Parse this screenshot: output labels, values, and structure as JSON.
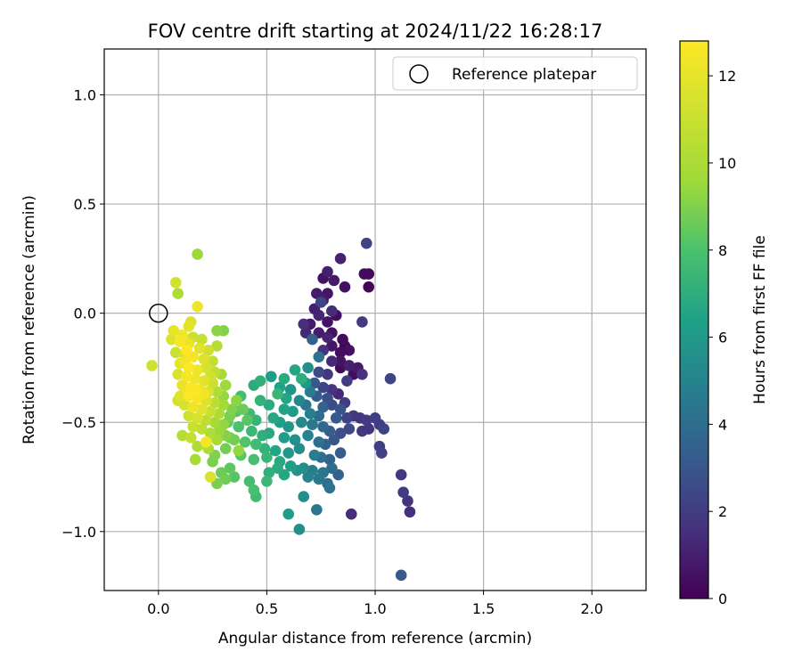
{
  "chart_data": {
    "type": "scatter",
    "title": "FOV centre drift starting at 2024/11/22 16:28:17",
    "xlabel": "Angular distance from reference (arcmin)",
    "ylabel": "Rotation from reference (arcmin)",
    "xlim": [
      -0.25,
      2.25
    ],
    "ylim": [
      -1.27,
      1.21
    ],
    "xticks": [
      0.0,
      0.5,
      1.0,
      1.5,
      2.0
    ],
    "xtick_labels": [
      "0.0",
      "0.5",
      "1.0",
      "1.5",
      "2.0"
    ],
    "yticks": [
      1.0,
      0.5,
      0.0,
      -0.5,
      -1.0
    ],
    "ytick_labels": [
      "1.0",
      "0.5",
      "0.0",
      "−0.5",
      "−1.0"
    ],
    "grid": true,
    "legend": {
      "label": "Reference platepar",
      "placement": "top-right",
      "marker": "hollow-circle"
    },
    "reference_point": {
      "x": 0.0,
      "y": 0.0
    },
    "colorbar": {
      "label": "Hours from first FF file",
      "range": [
        0,
        12.8
      ],
      "ticks": [
        0,
        2,
        4,
        6,
        8,
        10,
        12
      ],
      "tick_labels": [
        "0",
        "2",
        "4",
        "6",
        "8",
        "10",
        "12"
      ],
      "colormap": "viridis"
    },
    "points": [
      {
        "x": 0.96,
        "y": 0.32,
        "h": 2.2
      },
      {
        "x": 0.84,
        "y": 0.25,
        "h": 1.1
      },
      {
        "x": 0.78,
        "y": 0.19,
        "h": 1.0
      },
      {
        "x": 0.76,
        "y": 0.16,
        "h": 0.6
      },
      {
        "x": 0.81,
        "y": 0.15,
        "h": 0.8
      },
      {
        "x": 0.95,
        "y": 0.18,
        "h": 0.3
      },
      {
        "x": 0.97,
        "y": 0.18,
        "h": 0.2
      },
      {
        "x": 0.97,
        "y": 0.12,
        "h": 0.1
      },
      {
        "x": 0.86,
        "y": 0.12,
        "h": 0.5
      },
      {
        "x": 0.78,
        "y": 0.09,
        "h": 0.7
      },
      {
        "x": 0.73,
        "y": 0.09,
        "h": 0.9
      },
      {
        "x": 0.75,
        "y": 0.05,
        "h": 2.3
      },
      {
        "x": 0.76,
        "y": 0.06,
        "h": 0.8
      },
      {
        "x": 0.72,
        "y": 0.02,
        "h": 1.0
      },
      {
        "x": 0.8,
        "y": 0.01,
        "h": 1.4
      },
      {
        "x": 0.74,
        "y": -0.01,
        "h": 1.2
      },
      {
        "x": 0.82,
        "y": -0.01,
        "h": 0.4
      },
      {
        "x": 0.67,
        "y": -0.05,
        "h": 1.5
      },
      {
        "x": 0.7,
        "y": -0.05,
        "h": 0.8
      },
      {
        "x": 0.78,
        "y": -0.04,
        "h": 0.6
      },
      {
        "x": 0.94,
        "y": -0.04,
        "h": 1.9
      },
      {
        "x": 0.68,
        "y": -0.09,
        "h": 1.3
      },
      {
        "x": 0.74,
        "y": -0.09,
        "h": 0.9
      },
      {
        "x": 0.8,
        "y": -0.09,
        "h": 0.5
      },
      {
        "x": 0.85,
        "y": -0.12,
        "h": 0.3
      },
      {
        "x": 0.78,
        "y": -0.11,
        "h": 1.1
      },
      {
        "x": 0.71,
        "y": -0.12,
        "h": 3.5
      },
      {
        "x": 0.8,
        "y": -0.15,
        "h": 0.7
      },
      {
        "x": 0.86,
        "y": -0.15,
        "h": 0.2
      },
      {
        "x": 0.76,
        "y": -0.17,
        "h": 1.6
      },
      {
        "x": 0.84,
        "y": -0.18,
        "h": 0.4
      },
      {
        "x": 0.88,
        "y": -0.17,
        "h": 0.5
      },
      {
        "x": 0.74,
        "y": -0.2,
        "h": 4.2
      },
      {
        "x": 0.84,
        "y": -0.22,
        "h": 0.6
      },
      {
        "x": 0.8,
        "y": -0.22,
        "h": 1.3
      },
      {
        "x": 0.84,
        "y": -0.25,
        "h": 0.3
      },
      {
        "x": 0.88,
        "y": -0.24,
        "h": 1.0
      },
      {
        "x": 0.92,
        "y": -0.25,
        "h": 0.8
      },
      {
        "x": 0.69,
        "y": -0.25,
        "h": 5.5
      },
      {
        "x": 0.74,
        "y": -0.27,
        "h": 2.5
      },
      {
        "x": 0.78,
        "y": -0.28,
        "h": 1.8
      },
      {
        "x": 0.9,
        "y": -0.28,
        "h": 0.4
      },
      {
        "x": 0.94,
        "y": -0.28,
        "h": 1.6
      },
      {
        "x": 0.87,
        "y": -0.31,
        "h": 2.0
      },
      {
        "x": 1.07,
        "y": -0.3,
        "h": 2.3
      },
      {
        "x": 0.68,
        "y": -0.32,
        "h": 6.0
      },
      {
        "x": 0.72,
        "y": -0.32,
        "h": 3.0
      },
      {
        "x": 0.76,
        "y": -0.34,
        "h": 2.4
      },
      {
        "x": 0.8,
        "y": -0.35,
        "h": 1.7
      },
      {
        "x": 0.83,
        "y": -0.37,
        "h": 1.3
      },
      {
        "x": 0.66,
        "y": -0.3,
        "h": 7.0
      },
      {
        "x": 0.63,
        "y": -0.26,
        "h": 6.6
      },
      {
        "x": 0.58,
        "y": -0.3,
        "h": 6.8
      },
      {
        "x": 0.52,
        "y": -0.29,
        "h": 6.2
      },
      {
        "x": 0.47,
        "y": -0.31,
        "h": 7.1
      },
      {
        "x": 0.44,
        "y": -0.33,
        "h": 6.9
      },
      {
        "x": 0.56,
        "y": -0.34,
        "h": 6.4
      },
      {
        "x": 0.61,
        "y": -0.35,
        "h": 5.8
      },
      {
        "x": 0.7,
        "y": -0.36,
        "h": 4.6
      },
      {
        "x": 0.73,
        "y": -0.38,
        "h": 3.2
      },
      {
        "x": 0.78,
        "y": -0.39,
        "h": 2.7
      },
      {
        "x": 0.86,
        "y": -0.41,
        "h": 1.9
      },
      {
        "x": 0.55,
        "y": -0.37,
        "h": 7.4
      },
      {
        "x": 0.59,
        "y": -0.39,
        "h": 6.6
      },
      {
        "x": 0.65,
        "y": -0.4,
        "h": 5.2
      },
      {
        "x": 0.68,
        "y": -0.42,
        "h": 4.4
      },
      {
        "x": 0.76,
        "y": -0.43,
        "h": 3.6
      },
      {
        "x": 0.8,
        "y": -0.42,
        "h": 2.6
      },
      {
        "x": 0.84,
        "y": -0.44,
        "h": 2.9
      },
      {
        "x": 0.38,
        "y": -0.38,
        "h": 7.8
      },
      {
        "x": 0.47,
        "y": -0.4,
        "h": 7.2
      },
      {
        "x": 0.51,
        "y": -0.42,
        "h": 6.9
      },
      {
        "x": 0.58,
        "y": -0.44,
        "h": 6.5
      },
      {
        "x": 0.62,
        "y": -0.45,
        "h": 6.1
      },
      {
        "x": 0.7,
        "y": -0.46,
        "h": 4.8
      },
      {
        "x": 0.74,
        "y": -0.47,
        "h": 3.9
      },
      {
        "x": 0.82,
        "y": -0.48,
        "h": 3.1
      },
      {
        "x": 0.87,
        "y": -0.48,
        "h": 2.2
      },
      {
        "x": 0.9,
        "y": -0.47,
        "h": 1.8
      },
      {
        "x": 0.93,
        "y": -0.48,
        "h": 1.7
      },
      {
        "x": 0.96,
        "y": -0.49,
        "h": 1.9
      },
      {
        "x": 1.0,
        "y": -0.48,
        "h": 2.1
      },
      {
        "x": 1.02,
        "y": -0.51,
        "h": 2.0
      },
      {
        "x": 0.97,
        "y": -0.53,
        "h": 1.6
      },
      {
        "x": 1.04,
        "y": -0.53,
        "h": 2.3
      },
      {
        "x": 0.94,
        "y": -0.54,
        "h": 1.8
      },
      {
        "x": 0.36,
        "y": -0.45,
        "h": 8.2
      },
      {
        "x": 0.42,
        "y": -0.46,
        "h": 7.6
      },
      {
        "x": 0.45,
        "y": -0.49,
        "h": 7.3
      },
      {
        "x": 0.53,
        "y": -0.48,
        "h": 6.7
      },
      {
        "x": 0.56,
        "y": -0.5,
        "h": 6.3
      },
      {
        "x": 0.6,
        "y": -0.52,
        "h": 5.9
      },
      {
        "x": 0.66,
        "y": -0.5,
        "h": 5.3
      },
      {
        "x": 0.71,
        "y": -0.51,
        "h": 4.5
      },
      {
        "x": 0.76,
        "y": -0.52,
        "h": 3.8
      },
      {
        "x": 0.79,
        "y": -0.54,
        "h": 3.3
      },
      {
        "x": 0.84,
        "y": -0.55,
        "h": 2.7
      },
      {
        "x": 0.88,
        "y": -0.53,
        "h": 2.5
      },
      {
        "x": 0.32,
        "y": -0.5,
        "h": 8.5
      },
      {
        "x": 0.37,
        "y": -0.52,
        "h": 8.0
      },
      {
        "x": 0.43,
        "y": -0.54,
        "h": 7.5
      },
      {
        "x": 0.48,
        "y": -0.56,
        "h": 7.0
      },
      {
        "x": 0.51,
        "y": -0.55,
        "h": 6.8
      },
      {
        "x": 0.58,
        "y": -0.57,
        "h": 6.2
      },
      {
        "x": 0.63,
        "y": -0.58,
        "h": 5.6
      },
      {
        "x": 0.69,
        "y": -0.56,
        "h": 4.9
      },
      {
        "x": 0.74,
        "y": -0.59,
        "h": 4.1
      },
      {
        "x": 0.77,
        "y": -0.6,
        "h": 3.4
      },
      {
        "x": 0.81,
        "y": -0.58,
        "h": 3.0
      },
      {
        "x": 0.33,
        "y": -0.57,
        "h": 8.7
      },
      {
        "x": 0.4,
        "y": -0.59,
        "h": 8.1
      },
      {
        "x": 0.45,
        "y": -0.6,
        "h": 7.7
      },
      {
        "x": 0.49,
        "y": -0.62,
        "h": 7.2
      },
      {
        "x": 0.54,
        "y": -0.63,
        "h": 6.6
      },
      {
        "x": 0.6,
        "y": -0.64,
        "h": 6.0
      },
      {
        "x": 0.65,
        "y": -0.62,
        "h": 5.4
      },
      {
        "x": 0.72,
        "y": -0.65,
        "h": 4.7
      },
      {
        "x": 0.75,
        "y": -0.66,
        "h": 4.0
      },
      {
        "x": 0.79,
        "y": -0.67,
        "h": 3.6
      },
      {
        "x": 0.84,
        "y": -0.64,
        "h": 3.2
      },
      {
        "x": 0.26,
        "y": -0.65,
        "h": 9.0
      },
      {
        "x": 0.31,
        "y": -0.62,
        "h": 8.8
      },
      {
        "x": 0.38,
        "y": -0.65,
        "h": 8.3
      },
      {
        "x": 0.44,
        "y": -0.67,
        "h": 7.9
      },
      {
        "x": 0.5,
        "y": -0.66,
        "h": 7.4
      },
      {
        "x": 0.56,
        "y": -0.68,
        "h": 6.8
      },
      {
        "x": 0.61,
        "y": -0.7,
        "h": 6.3
      },
      {
        "x": 0.67,
        "y": -0.71,
        "h": 5.4
      },
      {
        "x": 0.71,
        "y": -0.72,
        "h": 4.8
      },
      {
        "x": 0.76,
        "y": -0.73,
        "h": 4.3
      },
      {
        "x": 0.8,
        "y": -0.71,
        "h": 3.9
      },
      {
        "x": 0.25,
        "y": -0.68,
        "h": 8.9
      },
      {
        "x": 0.33,
        "y": -0.71,
        "h": 8.4
      },
      {
        "x": 0.29,
        "y": -0.73,
        "h": 8.6
      },
      {
        "x": 0.35,
        "y": -0.75,
        "h": 8.2
      },
      {
        "x": 0.42,
        "y": -0.77,
        "h": 7.8
      },
      {
        "x": 0.51,
        "y": -0.73,
        "h": 7.1
      },
      {
        "x": 0.55,
        "y": -0.71,
        "h": 6.9
      },
      {
        "x": 0.58,
        "y": -0.74,
        "h": 6.6
      },
      {
        "x": 0.64,
        "y": -0.72,
        "h": 5.7
      },
      {
        "x": 0.69,
        "y": -0.75,
        "h": 5.0
      },
      {
        "x": 0.74,
        "y": -0.76,
        "h": 4.5
      },
      {
        "x": 0.78,
        "y": -0.78,
        "h": 4.0
      },
      {
        "x": 0.83,
        "y": -0.74,
        "h": 3.5
      },
      {
        "x": 0.27,
        "y": -0.78,
        "h": 8.9
      },
      {
        "x": 0.31,
        "y": -0.76,
        "h": 8.7
      },
      {
        "x": 0.44,
        "y": -0.81,
        "h": 7.9
      },
      {
        "x": 0.5,
        "y": -0.77,
        "h": 7.5
      },
      {
        "x": 0.45,
        "y": -0.84,
        "h": 7.7
      },
      {
        "x": 0.67,
        "y": -0.84,
        "h": 5.6
      },
      {
        "x": 0.79,
        "y": -0.8,
        "h": 4.2
      },
      {
        "x": 0.73,
        "y": -0.9,
        "h": 4.4
      },
      {
        "x": 0.6,
        "y": -0.92,
        "h": 6.2
      },
      {
        "x": 0.65,
        "y": -0.99,
        "h": 5.5
      },
      {
        "x": 0.89,
        "y": -0.92,
        "h": 1.4
      },
      {
        "x": 1.12,
        "y": -0.74,
        "h": 1.8
      },
      {
        "x": 1.13,
        "y": -0.82,
        "h": 2.0
      },
      {
        "x": 1.15,
        "y": -0.86,
        "h": 1.7
      },
      {
        "x": 1.16,
        "y": -0.91,
        "h": 1.5
      },
      {
        "x": 1.12,
        "y": -1.2,
        "h": 3.1
      },
      {
        "x": 1.02,
        "y": -0.61,
        "h": 2.0
      },
      {
        "x": 1.03,
        "y": -0.64,
        "h": 2.2
      },
      {
        "x": 0.18,
        "y": 0.27,
        "h": 9.5
      },
      {
        "x": 0.08,
        "y": 0.14,
        "h": 11.3
      },
      {
        "x": 0.09,
        "y": 0.09,
        "h": 10.0
      },
      {
        "x": 0.18,
        "y": 0.03,
        "h": 12.2
      },
      {
        "x": 0.15,
        "y": -0.04,
        "h": 11.6
      },
      {
        "x": 0.14,
        "y": -0.06,
        "h": 11.9
      },
      {
        "x": 0.07,
        "y": -0.08,
        "h": 12.0
      },
      {
        "x": 0.11,
        "y": -0.1,
        "h": 12.4
      },
      {
        "x": 0.27,
        "y": -0.08,
        "h": 9.2
      },
      {
        "x": 0.3,
        "y": -0.08,
        "h": 9.0
      },
      {
        "x": 0.1,
        "y": -0.13,
        "h": 12.6
      },
      {
        "x": 0.14,
        "y": -0.14,
        "h": 12.1
      },
      {
        "x": 0.19,
        "y": -0.16,
        "h": 11.8
      },
      {
        "x": 0.23,
        "y": -0.17,
        "h": 11.2
      },
      {
        "x": 0.27,
        "y": -0.15,
        "h": 10.4
      },
      {
        "x": 0.08,
        "y": -0.18,
        "h": 11.0
      },
      {
        "x": 0.12,
        "y": -0.19,
        "h": 11.5
      },
      {
        "x": 0.16,
        "y": -0.2,
        "h": 12.5
      },
      {
        "x": 0.21,
        "y": -0.21,
        "h": 11.7
      },
      {
        "x": 0.25,
        "y": -0.22,
        "h": 10.8
      },
      {
        "x": -0.03,
        "y": -0.24,
        "h": 11.2
      },
      {
        "x": 0.1,
        "y": -0.23,
        "h": 12.0
      },
      {
        "x": 0.14,
        "y": -0.25,
        "h": 12.7
      },
      {
        "x": 0.18,
        "y": -0.26,
        "h": 12.3
      },
      {
        "x": 0.22,
        "y": -0.25,
        "h": 11.4
      },
      {
        "x": 0.26,
        "y": -0.27,
        "h": 10.6
      },
      {
        "x": 0.29,
        "y": -0.28,
        "h": 9.8
      },
      {
        "x": 0.09,
        "y": -0.28,
        "h": 11.6
      },
      {
        "x": 0.13,
        "y": -0.29,
        "h": 12.6
      },
      {
        "x": 0.17,
        "y": -0.3,
        "h": 12.2
      },
      {
        "x": 0.21,
        "y": -0.31,
        "h": 11.9
      },
      {
        "x": 0.25,
        "y": -0.32,
        "h": 11.0
      },
      {
        "x": 0.31,
        "y": -0.33,
        "h": 9.6
      },
      {
        "x": 0.11,
        "y": -0.33,
        "h": 12.1
      },
      {
        "x": 0.15,
        "y": -0.34,
        "h": 12.8
      },
      {
        "x": 0.19,
        "y": -0.35,
        "h": 12.4
      },
      {
        "x": 0.23,
        "y": -0.36,
        "h": 11.5
      },
      {
        "x": 0.27,
        "y": -0.36,
        "h": 10.2
      },
      {
        "x": 0.1,
        "y": -0.38,
        "h": 11.8
      },
      {
        "x": 0.14,
        "y": -0.38,
        "h": 12.9
      },
      {
        "x": 0.18,
        "y": -0.39,
        "h": 12.6
      },
      {
        "x": 0.22,
        "y": -0.4,
        "h": 11.7
      },
      {
        "x": 0.26,
        "y": -0.41,
        "h": 10.5
      },
      {
        "x": 0.3,
        "y": -0.42,
        "h": 9.7
      },
      {
        "x": 0.12,
        "y": -0.42,
        "h": 11.4
      },
      {
        "x": 0.16,
        "y": -0.43,
        "h": 12.3
      },
      {
        "x": 0.2,
        "y": -0.44,
        "h": 11.9
      },
      {
        "x": 0.24,
        "y": -0.45,
        "h": 10.9
      },
      {
        "x": 0.28,
        "y": -0.46,
        "h": 10.0
      },
      {
        "x": 0.14,
        "y": -0.47,
        "h": 11.2
      },
      {
        "x": 0.18,
        "y": -0.48,
        "h": 11.6
      },
      {
        "x": 0.22,
        "y": -0.49,
        "h": 10.7
      },
      {
        "x": 0.26,
        "y": -0.5,
        "h": 9.9
      },
      {
        "x": 0.3,
        "y": -0.51,
        "h": 9.3
      },
      {
        "x": 0.16,
        "y": -0.52,
        "h": 11.0
      },
      {
        "x": 0.2,
        "y": -0.53,
        "h": 10.6
      },
      {
        "x": 0.24,
        "y": -0.55,
        "h": 10.1
      },
      {
        "x": 0.28,
        "y": -0.54,
        "h": 9.5
      },
      {
        "x": 0.11,
        "y": -0.56,
        "h": 10.3
      },
      {
        "x": 0.15,
        "y": -0.57,
        "h": 10.8
      },
      {
        "x": 0.22,
        "y": -0.59,
        "h": 12.5
      },
      {
        "x": 0.27,
        "y": -0.58,
        "h": 9.8
      },
      {
        "x": 0.31,
        "y": -0.56,
        "h": 9.1
      },
      {
        "x": 0.18,
        "y": -0.61,
        "h": 10.2
      },
      {
        "x": 0.23,
        "y": -0.62,
        "h": 10.0
      },
      {
        "x": 0.17,
        "y": -0.67,
        "h": 9.9
      },
      {
        "x": 0.24,
        "y": -0.75,
        "h": 11.6
      },
      {
        "x": 0.37,
        "y": -0.63,
        "h": 9.4
      },
      {
        "x": 0.35,
        "y": -0.58,
        "h": 8.8
      },
      {
        "x": 0.33,
        "y": -0.47,
        "h": 8.9
      },
      {
        "x": 0.39,
        "y": -0.44,
        "h": 8.6
      },
      {
        "x": 0.41,
        "y": -0.49,
        "h": 8.3
      },
      {
        "x": 0.36,
        "y": -0.4,
        "h": 9.2
      },
      {
        "x": 0.34,
        "y": -0.44,
        "h": 9.0
      },
      {
        "x": 0.3,
        "y": -0.38,
        "h": 9.4
      },
      {
        "x": 0.12,
        "y": -0.22,
        "h": 12.4
      },
      {
        "x": 0.16,
        "y": -0.11,
        "h": 11.1
      },
      {
        "x": 0.2,
        "y": -0.12,
        "h": 10.9
      },
      {
        "x": 0.06,
        "y": -0.12,
        "h": 11.7
      },
      {
        "x": 0.24,
        "y": -0.29,
        "h": 11.3
      },
      {
        "x": 0.13,
        "y": -0.17,
        "h": 12.8
      },
      {
        "x": 0.17,
        "y": -0.35,
        "h": 12.7
      },
      {
        "x": 0.21,
        "y": -0.37,
        "h": 12.4
      },
      {
        "x": 0.12,
        "y": -0.36,
        "h": 12.0
      },
      {
        "x": 0.09,
        "y": -0.4,
        "h": 11.3
      }
    ]
  }
}
